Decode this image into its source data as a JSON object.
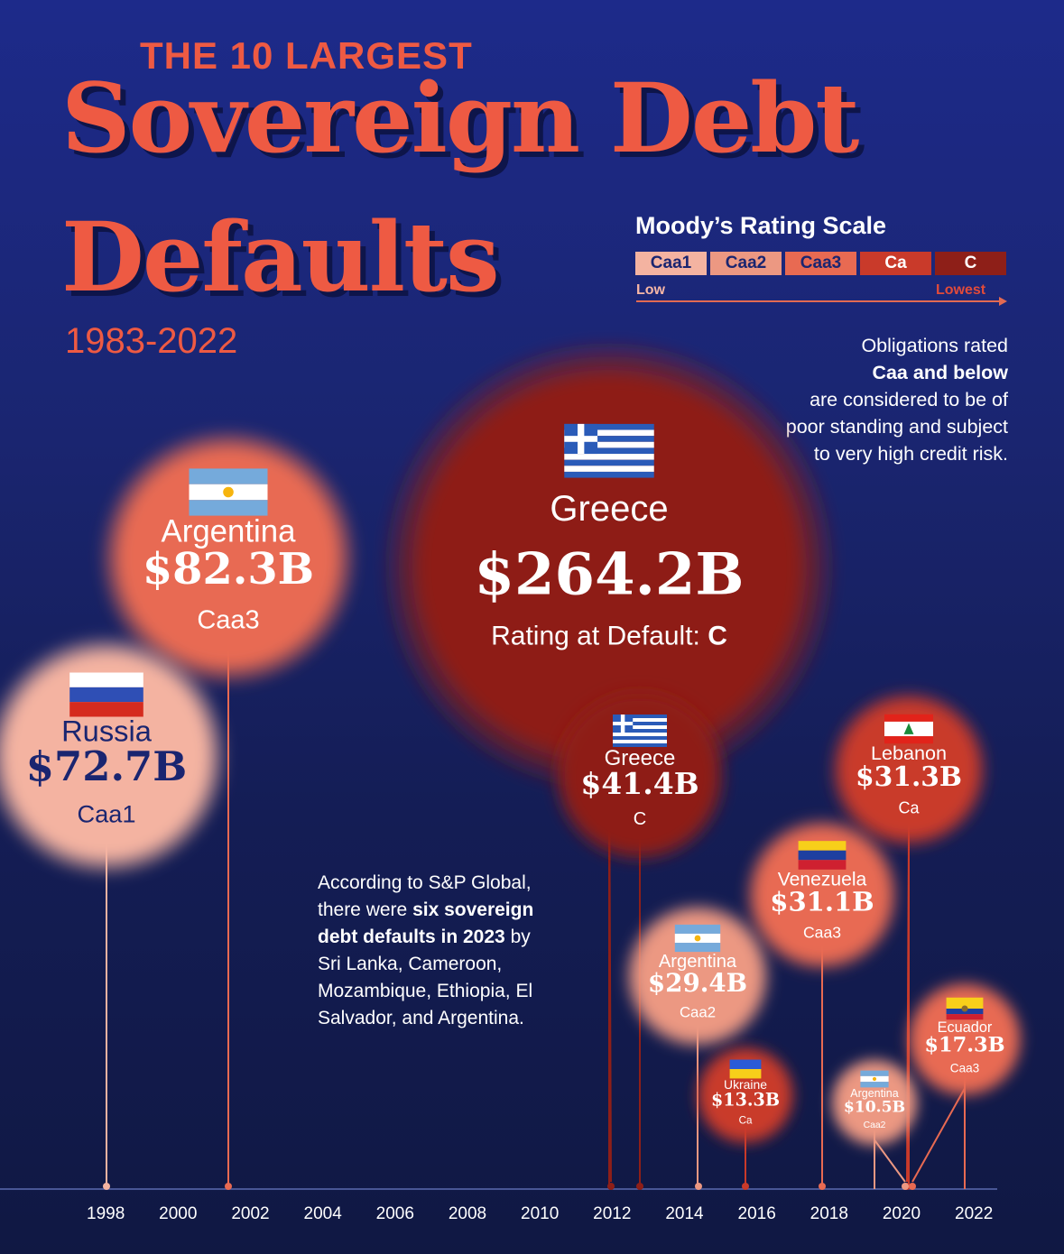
{
  "header": {
    "kicker": "THE 10 LARGEST",
    "title_line1": "Sovereign Debt",
    "title_line2": "Defaults",
    "years": "1983-2022"
  },
  "rating_scale": {
    "title": "Moody’s Rating Scale",
    "levels": [
      {
        "label": "Caa1",
        "color": "#f4b3a1",
        "text_color": "#1a2570"
      },
      {
        "label": "Caa2",
        "color": "#ec9882",
        "text_color": "#1a2570"
      },
      {
        "label": "Caa3",
        "color": "#e86a52",
        "text_color": "#1a2570"
      },
      {
        "label": "Ca",
        "color": "#c93a2a",
        "text_color": "#ffffff"
      },
      {
        "label": "C",
        "color": "#8e1f18",
        "text_color": "#ffffff"
      }
    ],
    "low_label": "Low",
    "lowest_label": "Lowest"
  },
  "notes": {
    "obligations": {
      "line1": "Obligations rated",
      "line2_bold": "Caa and below",
      "line3": "are considered to be of poor standing and subject to very high credit risk."
    },
    "sp": {
      "part1": "According to S&P Global, there were ",
      "bold": "six sovereign debt defaults in 2023",
      "part2": " by Sri Lanka, Cameroon, Mozambique, Ethiopia, El Salvador, and Argentina."
    },
    "rating_prefix": "Rating at Default: "
  },
  "chart_data": {
    "type": "scatter",
    "encoding": "bubble area proportional to value; x = year of default",
    "value_unit": "USD billions",
    "x_ticks": [
      1998,
      2000,
      2002,
      2004,
      2006,
      2008,
      2010,
      2012,
      2014,
      2016,
      2018,
      2020,
      2022
    ],
    "xlim": [
      1998,
      2022
    ],
    "points": [
      {
        "country": "Russia",
        "year": 1998.3,
        "value": 72.7,
        "value_label": "$72.7B",
        "rating": "Caa1",
        "flag": "russia-flag-icon"
      },
      {
        "country": "Argentina",
        "year": 2001.9,
        "value": 82.3,
        "value_label": "$82.3B",
        "rating": "Caa3",
        "flag": "argentina-flag-icon"
      },
      {
        "country": "Greece",
        "year": 2012.2,
        "value": 264.2,
        "value_label": "$264.2B",
        "rating": "C",
        "flag": "greece-flag-icon"
      },
      {
        "country": "Greece",
        "year": 2012.9,
        "value": 41.4,
        "value_label": "$41.4B",
        "rating": "C",
        "flag": "greece-flag-icon"
      },
      {
        "country": "Argentina",
        "year": 2014.5,
        "value": 29.4,
        "value_label": "$29.4B",
        "rating": "Caa2",
        "flag": "argentina-flag-icon"
      },
      {
        "country": "Ukraine",
        "year": 2015.8,
        "value": 13.3,
        "value_label": "$13.3B",
        "rating": "Ca",
        "flag": "ukraine-flag-icon"
      },
      {
        "country": "Venezuela",
        "year": 2017.8,
        "value": 31.1,
        "value_label": "$31.1B",
        "rating": "Caa3",
        "flag": "venezuela-flag-icon"
      },
      {
        "country": "Lebanon",
        "year": 2020.2,
        "value": 31.3,
        "value_label": "$31.3B",
        "rating": "Ca",
        "flag": "lebanon-flag-icon"
      },
      {
        "country": "Argentina",
        "year": 2020.1,
        "value": 10.5,
        "value_label": "$10.5B",
        "rating": "Caa2",
        "flag": "argentina-flag-icon"
      },
      {
        "country": "Ecuador",
        "year": 2020.3,
        "value": 17.3,
        "value_label": "$17.3B",
        "rating": "Caa3",
        "flag": "ecuador-flag-icon"
      }
    ]
  }
}
